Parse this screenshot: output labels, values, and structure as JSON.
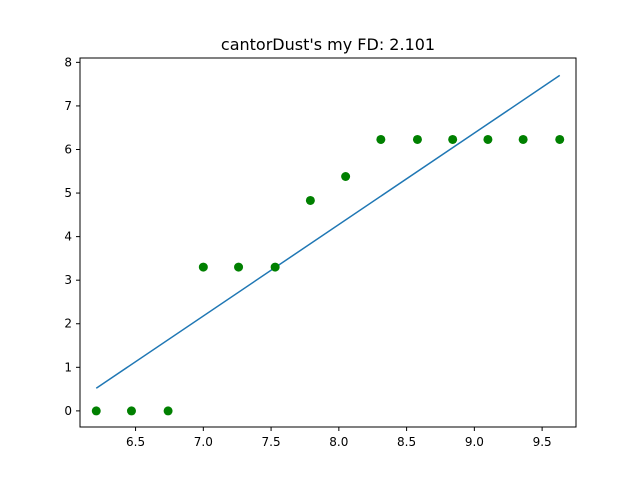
{
  "chart_data": {
    "type": "scatter",
    "title": "cantorDust's my FD: 2.101",
    "xlabel": "",
    "ylabel": "",
    "xlim": [
      6.09,
      9.75
    ],
    "ylim": [
      -0.37,
      8.1
    ],
    "xticks": [
      6.5,
      7.0,
      7.5,
      8.0,
      8.5,
      9.0,
      9.5
    ],
    "xtick_labels": [
      "6.5",
      "7.0",
      "7.5",
      "8.0",
      "8.5",
      "9.0",
      "9.5"
    ],
    "yticks": [
      0,
      1,
      2,
      3,
      4,
      5,
      6,
      7,
      8
    ],
    "ytick_labels": [
      "0",
      "1",
      "2",
      "3",
      "4",
      "5",
      "6",
      "7",
      "8"
    ],
    "grid": false,
    "series": [
      {
        "kind": "scatter",
        "color": "#008000",
        "x": [
          6.21,
          6.47,
          6.74,
          7.0,
          7.26,
          7.53,
          7.79,
          8.05,
          8.31,
          8.58,
          8.84,
          9.1,
          9.36,
          9.63
        ],
        "y": [
          0.0,
          0.0,
          0.0,
          3.3,
          3.3,
          3.3,
          4.83,
          5.38,
          6.23,
          6.23,
          6.23,
          6.23,
          6.23,
          6.23
        ]
      },
      {
        "kind": "line",
        "color": "#1f77b4",
        "x": [
          6.21,
          9.63
        ],
        "y": [
          0.52,
          7.7
        ]
      }
    ]
  }
}
